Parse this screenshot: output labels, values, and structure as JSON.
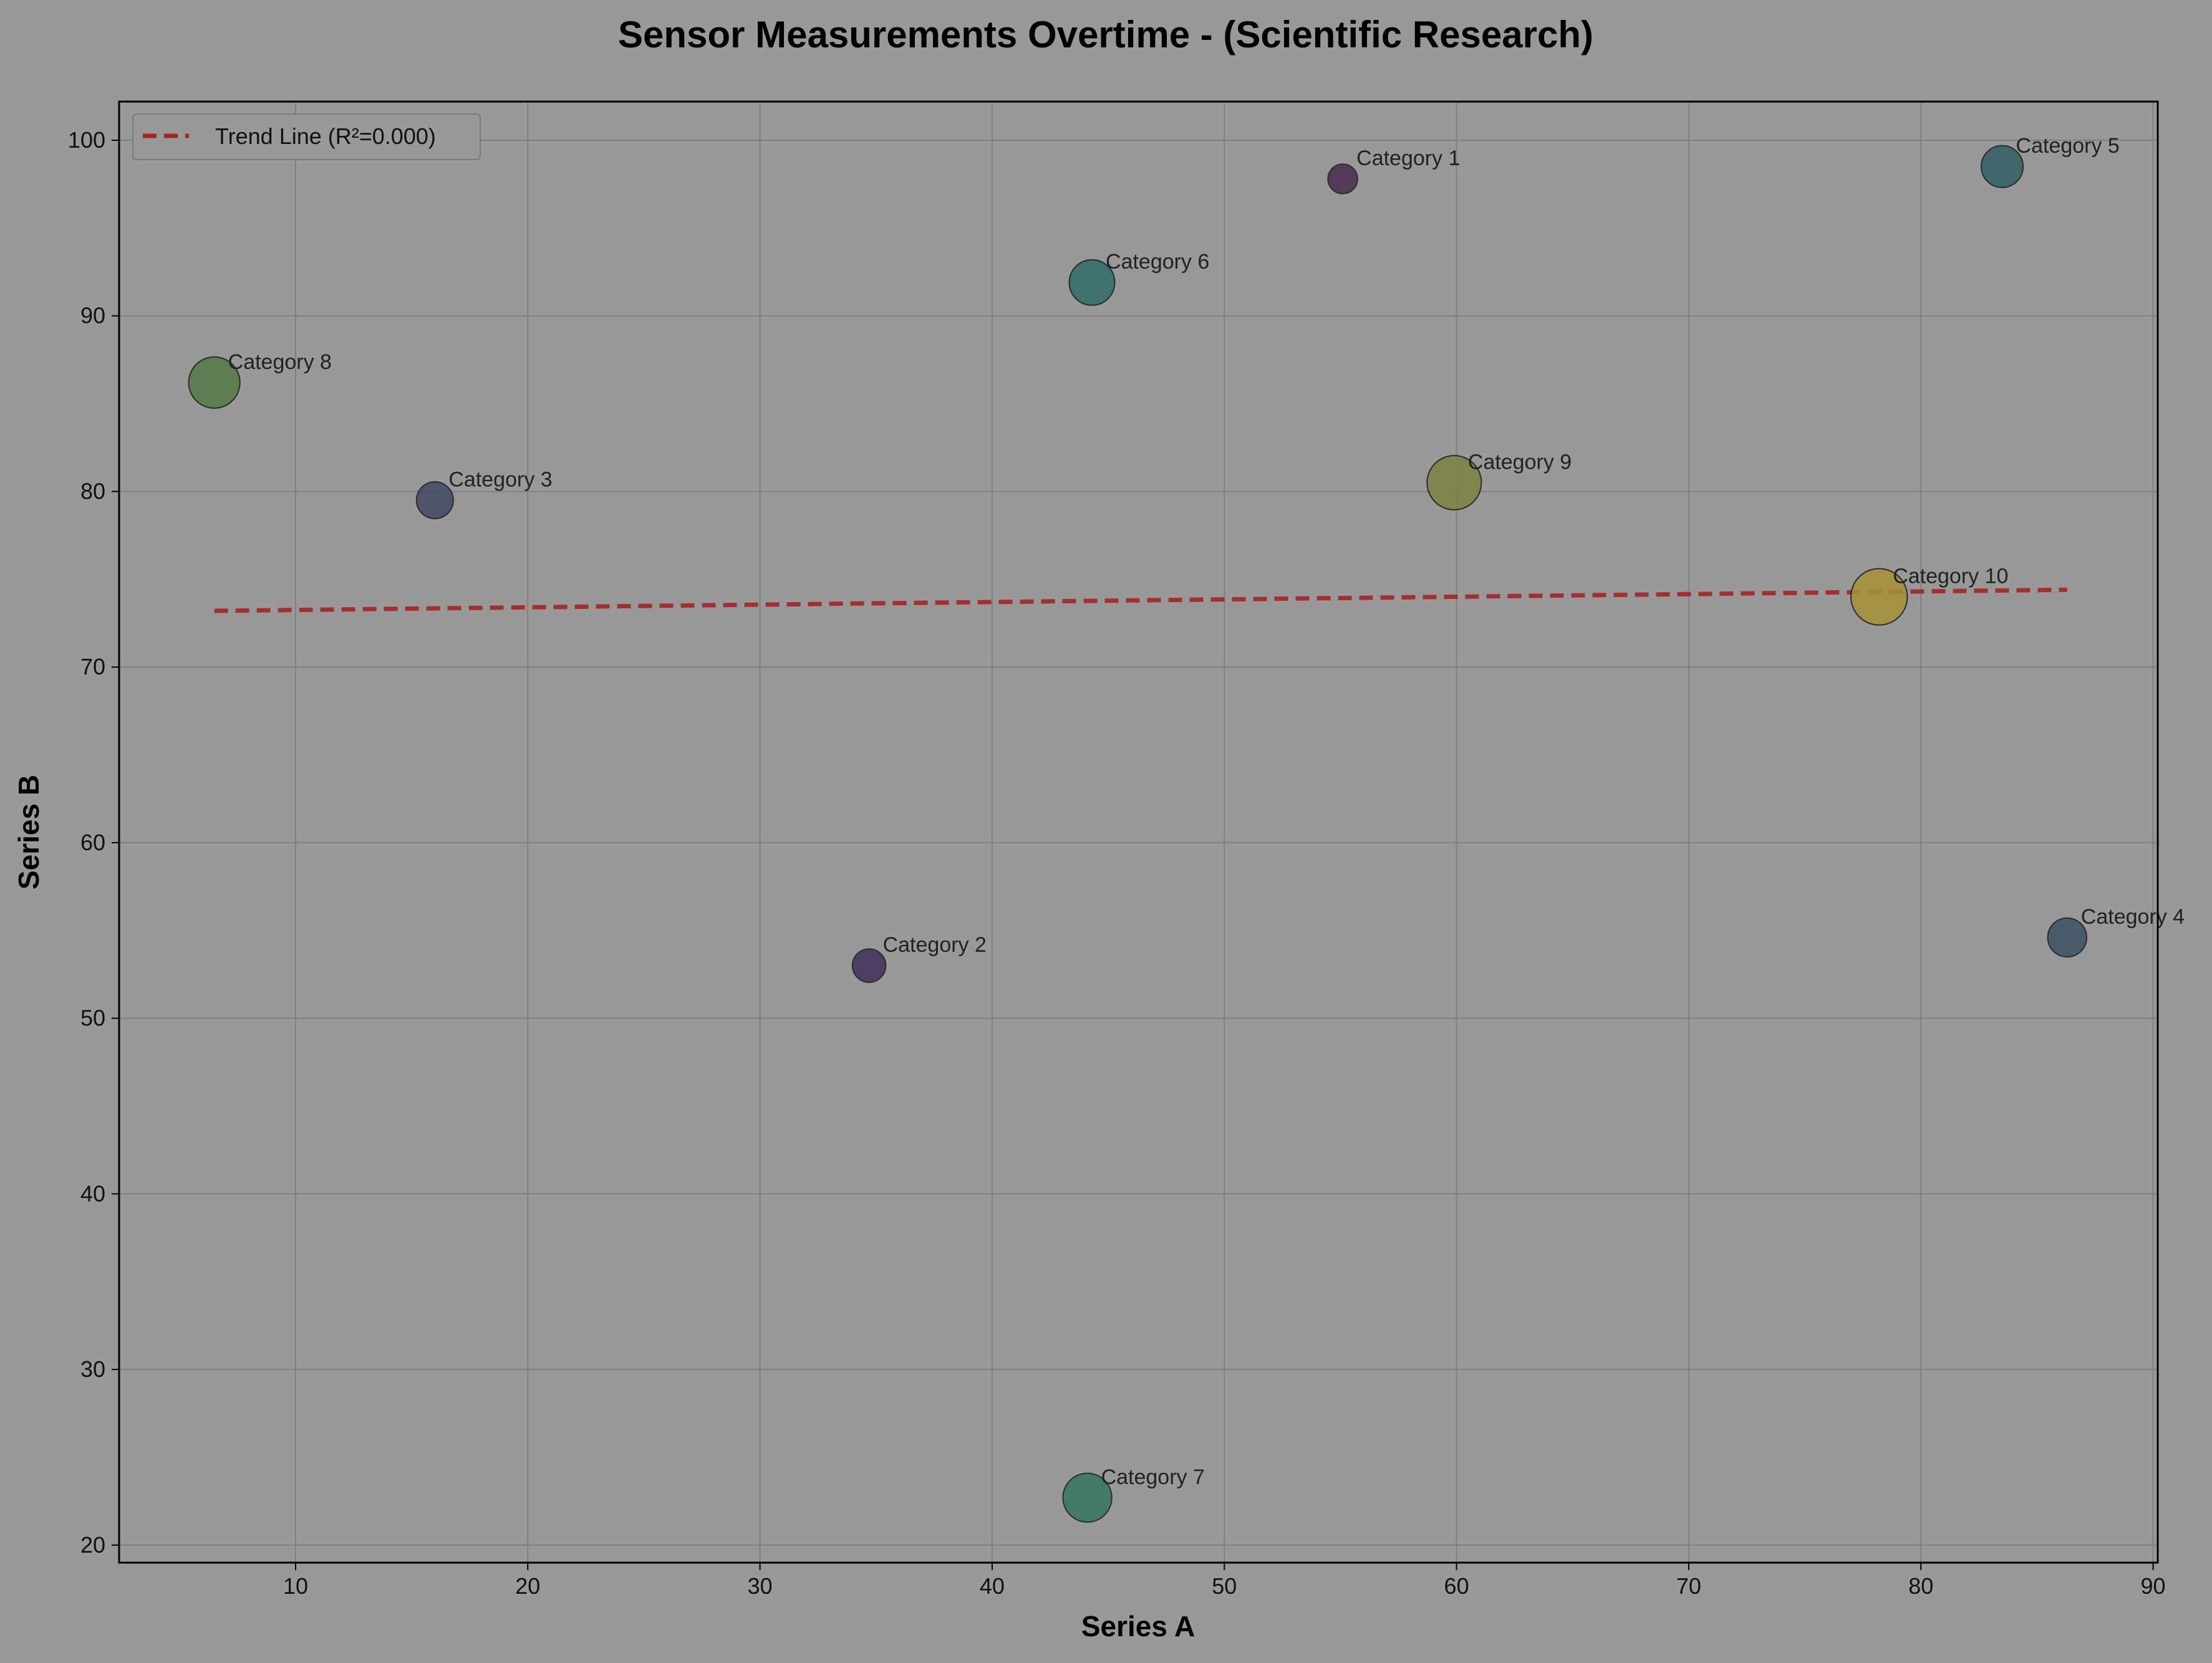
{
  "chart_data": {
    "type": "scatter",
    "title": "Sensor Measurements Overtime - (Scientific Research)",
    "xlabel": "Series A",
    "ylabel": "Series B",
    "xlim": [
      2.4,
      90.2
    ],
    "ylim": [
      19,
      102.2
    ],
    "xticks": [
      10,
      20,
      30,
      40,
      50,
      60,
      70,
      80,
      90
    ],
    "yticks": [
      20,
      30,
      40,
      50,
      60,
      70,
      80,
      90,
      100
    ],
    "grid": true,
    "legend_position": "top-left",
    "points": [
      {
        "label": "Category 1",
        "x": 55.1,
        "y": 97.8,
        "size": 55,
        "color": "#48294f"
      },
      {
        "label": "Category 2",
        "x": 34.7,
        "y": 53.0,
        "size": 70,
        "color": "#40305a"
      },
      {
        "label": "Category 3",
        "x": 16.0,
        "y": 79.5,
        "size": 85,
        "color": "#414864"
      },
      {
        "label": "Category 4",
        "x": 86.3,
        "y": 54.6,
        "size": 95,
        "color": "#3c5264"
      },
      {
        "label": "Category 5",
        "x": 83.5,
        "y": 98.5,
        "size": 110,
        "color": "#325f66"
      },
      {
        "label": "Category 6",
        "x": 44.3,
        "y": 91.9,
        "size": 130,
        "color": "#2f6c68"
      },
      {
        "label": "Category 7",
        "x": 44.1,
        "y": 22.7,
        "size": 150,
        "color": "#337560"
      },
      {
        "label": "Category 8",
        "x": 6.5,
        "y": 86.2,
        "size": 165,
        "color": "#527a46"
      },
      {
        "label": "Category 9",
        "x": 59.9,
        "y": 80.5,
        "size": 185,
        "color": "#7b8340"
      },
      {
        "label": "Category 10",
        "x": 78.2,
        "y": 74.0,
        "size": 200,
        "color": "#a69136"
      }
    ],
    "trend_line": {
      "label": "Trend Line (R²=0.000)",
      "color": "#a52424",
      "x": [
        6.5,
        86.3
      ],
      "y": [
        73.2,
        74.4
      ]
    }
  }
}
